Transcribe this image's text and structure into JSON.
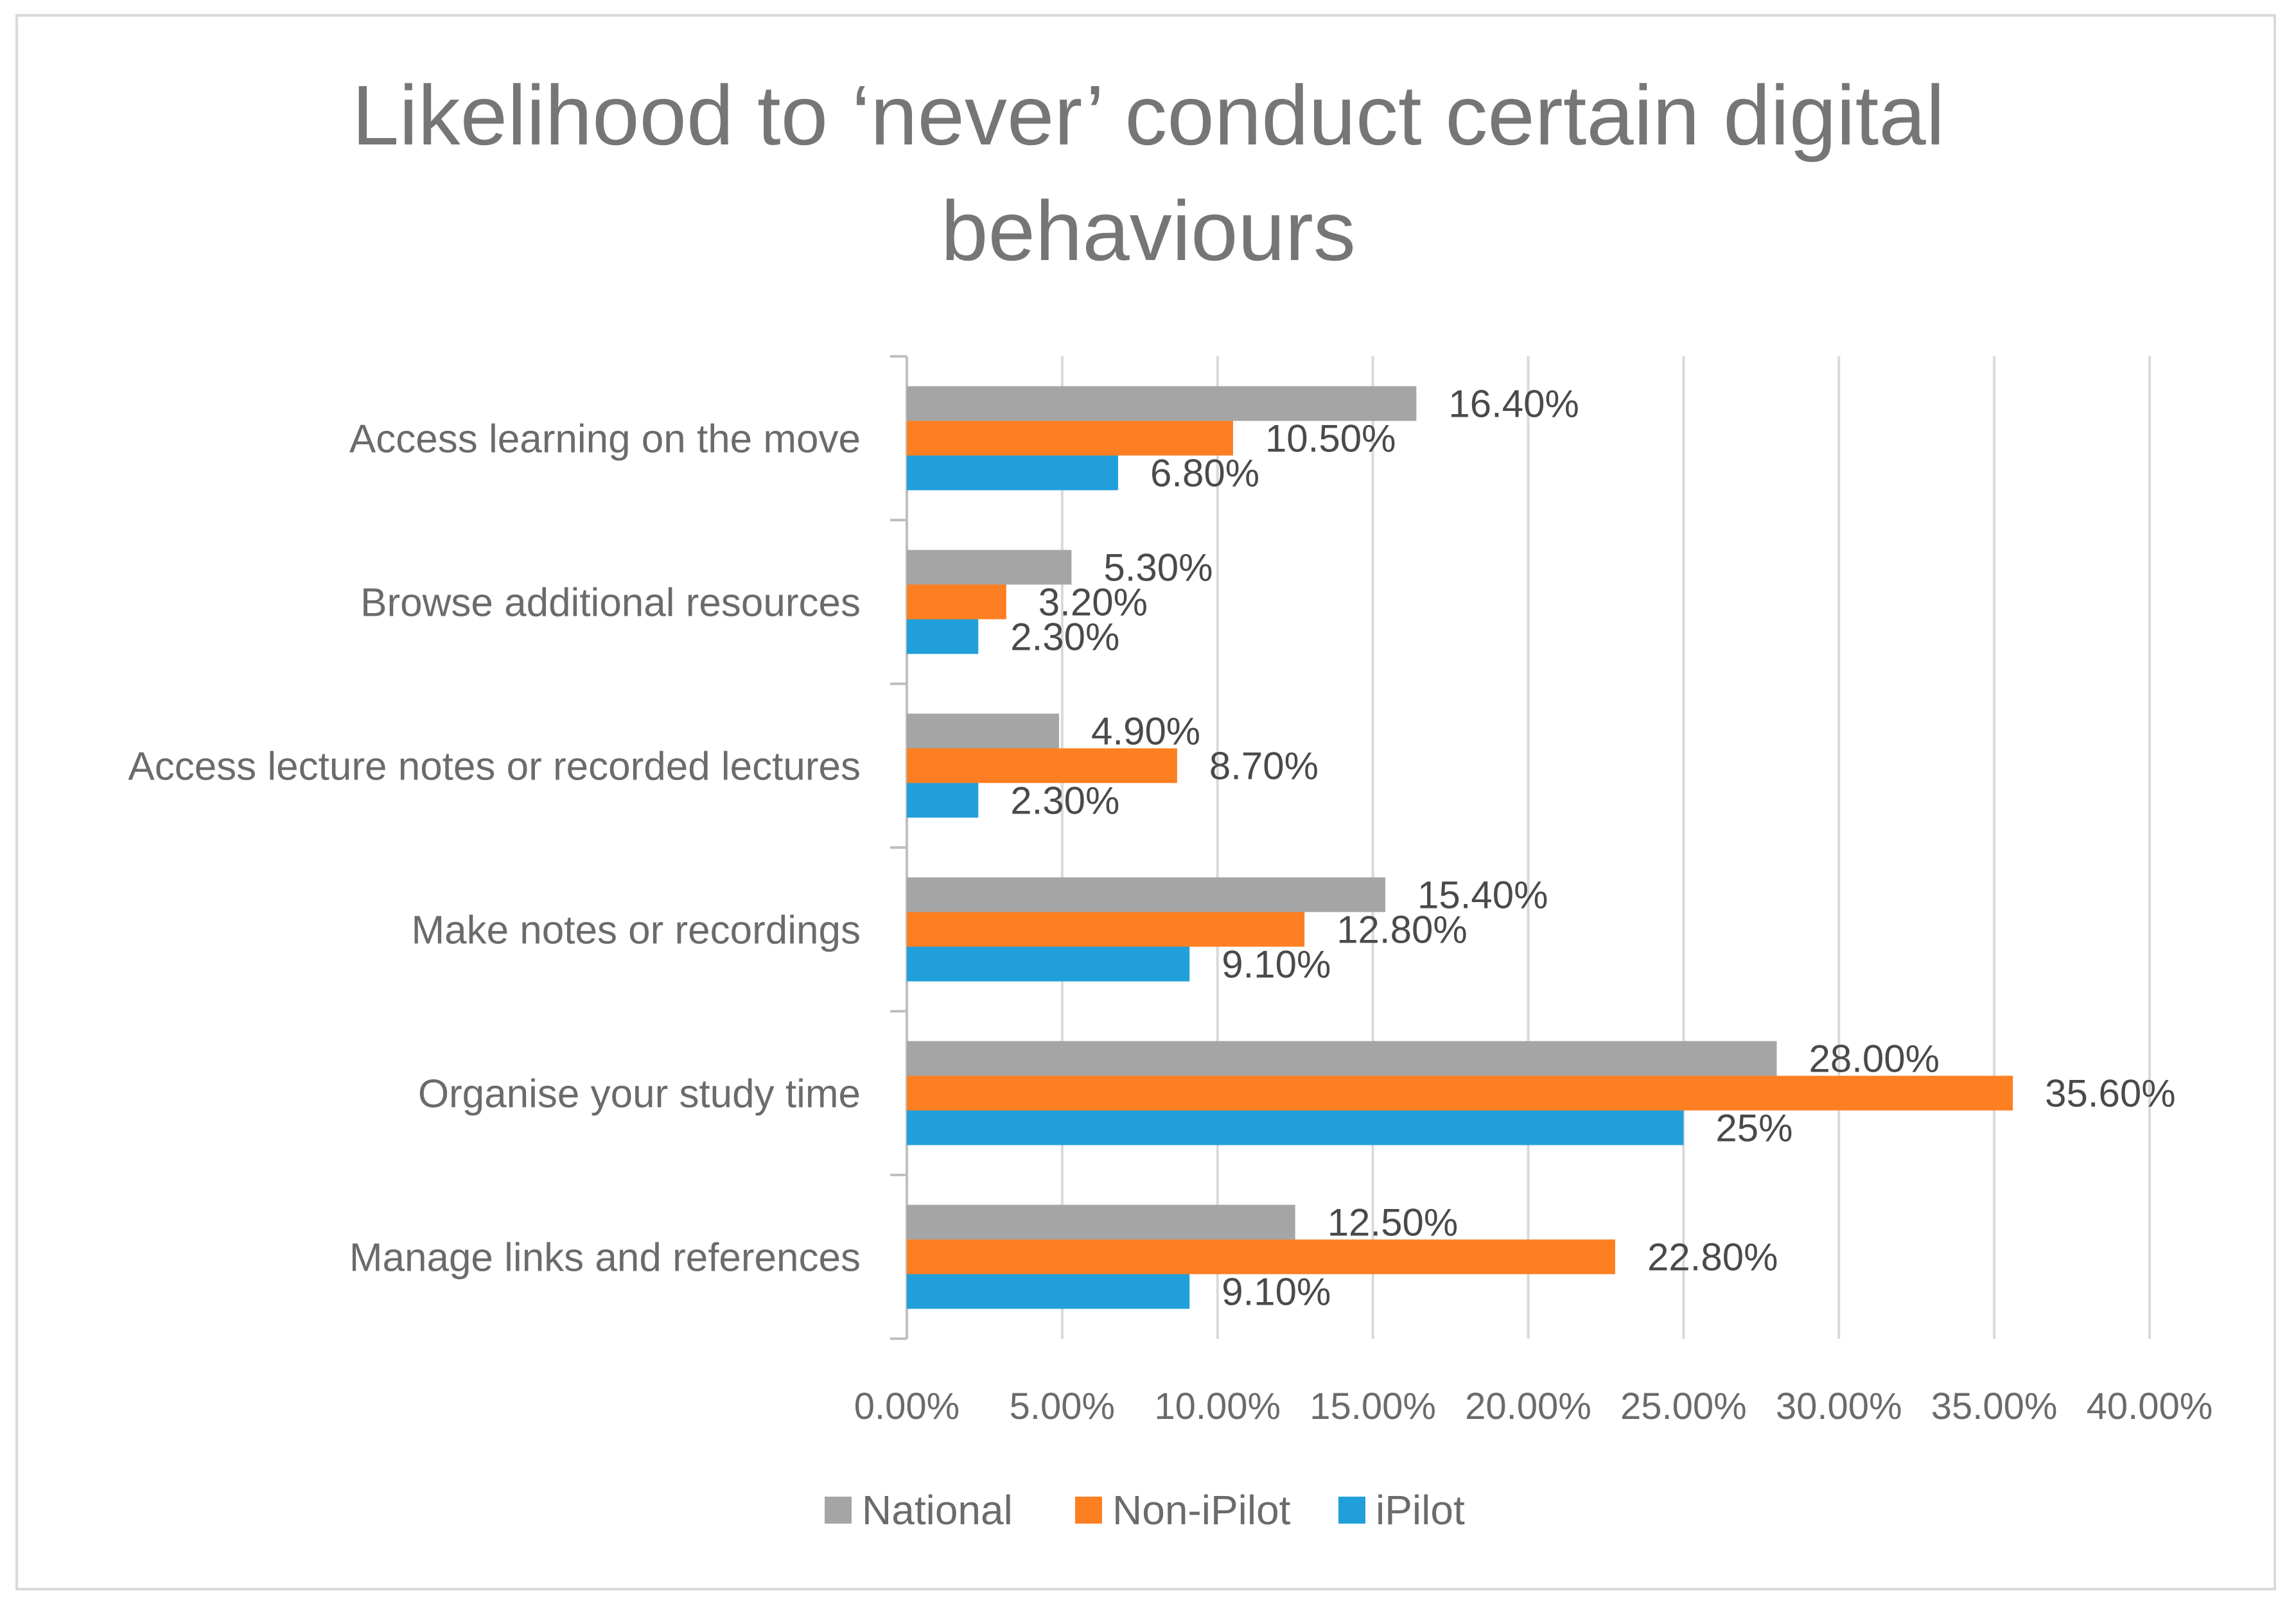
{
  "chart_data": {
    "type": "bar",
    "orientation": "horizontal",
    "title_lines": [
      "Likelihood to ‘never’ conduct certain digital",
      "behaviours"
    ],
    "categories": [
      "Access learning on the move",
      "Browse additional resources",
      "Access lecture notes or recorded lectures",
      "Make notes or recordings",
      "Organise your study time",
      "Manage links and references"
    ],
    "series": [
      {
        "name": "National",
        "color": "#a5a5a5",
        "values": [
          16.4,
          5.3,
          4.9,
          15.4,
          28.0,
          12.5
        ],
        "labels": [
          "16.40%",
          "5.30%",
          "4.90%",
          "15.40%",
          "28.00%",
          "12.50%"
        ]
      },
      {
        "name": "Non-iPilot",
        "color": "#fe7f22",
        "values": [
          10.5,
          3.2,
          8.7,
          12.8,
          35.6,
          22.8
        ],
        "labels": [
          "10.50%",
          "3.20%",
          "8.70%",
          "12.80%",
          "35.60%",
          "22.80%"
        ]
      },
      {
        "name": "iPilot",
        "color": "#219fdb",
        "values": [
          6.8,
          2.3,
          2.3,
          9.1,
          25,
          9.1
        ],
        "labels": [
          "6.80%",
          "2.30%",
          "2.30%",
          "9.10%",
          "25%",
          "9.10%"
        ]
      }
    ],
    "xlim": [
      0,
      40
    ],
    "xticks": [
      0,
      5,
      10,
      15,
      20,
      25,
      30,
      35,
      40
    ],
    "xtick_labels": [
      "0.00%",
      "5.00%",
      "10.00%",
      "15.00%",
      "20.00%",
      "25.00%",
      "30.00%",
      "35.00%",
      "40.00%"
    ],
    "grid": true,
    "legend_position": "bottom",
    "xlabel": "",
    "ylabel": ""
  }
}
